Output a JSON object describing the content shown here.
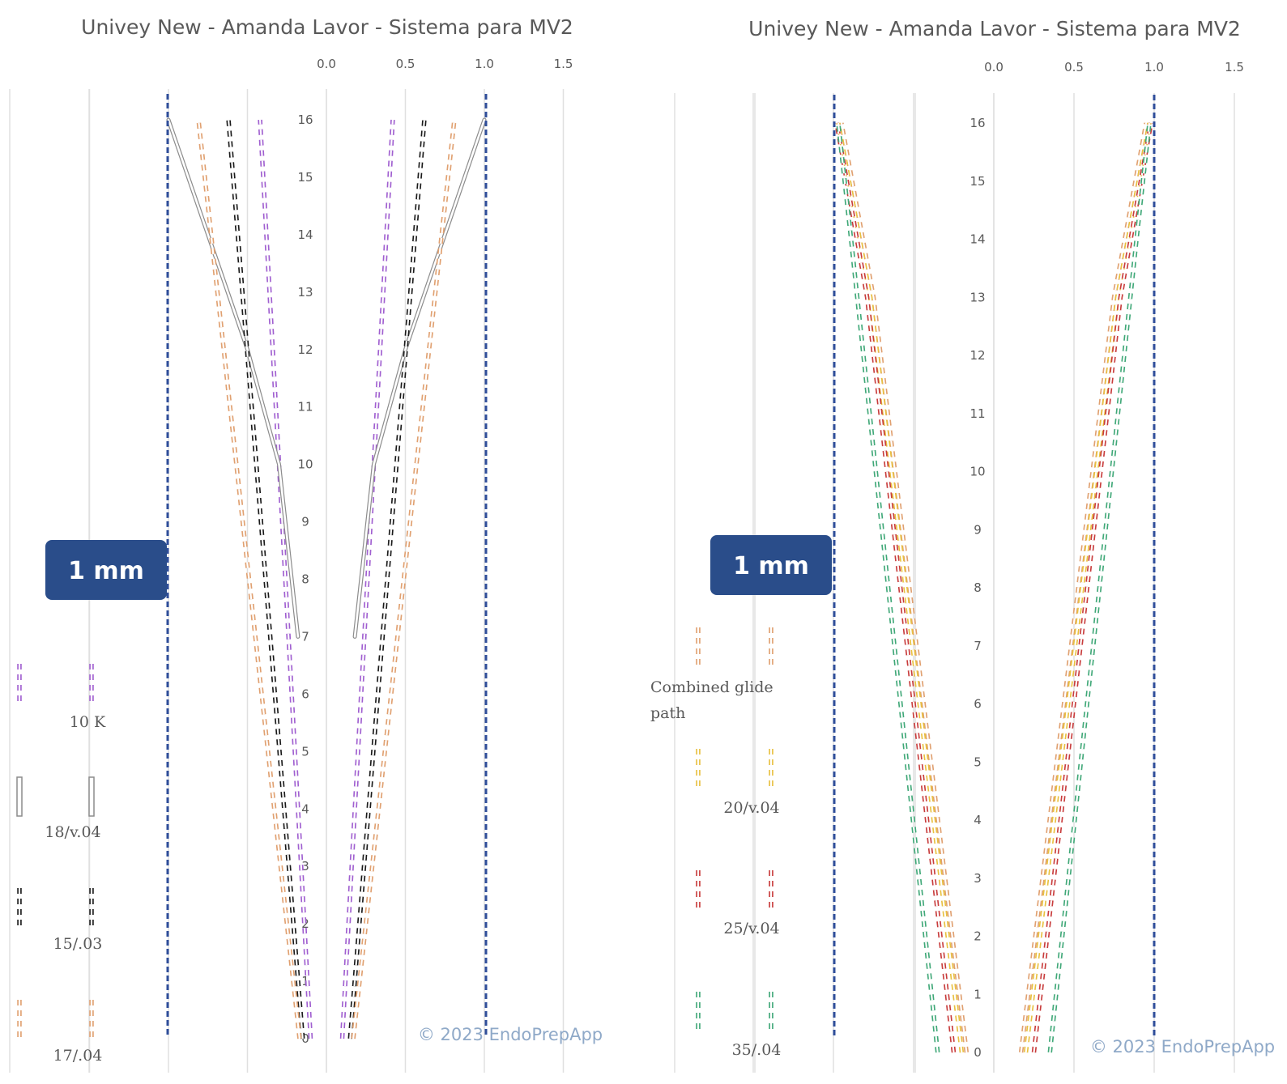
{
  "colors": {
    "purple": "#a05fd0",
    "gray": "#b8b8b8",
    "black": "#1a1a1a",
    "orange": "#e0a070",
    "yellow": "#e8c040",
    "red": "#c83c3c",
    "green": "#40a878",
    "guide": "#2f4e9a",
    "badge": "#2a4d8a",
    "grid": "#e0e0e0"
  },
  "chart_data": [
    {
      "type": "line",
      "title": "Univey New - Amanda Lavor - Sistema para MV2",
      "x_ticks": [
        "0.0",
        "0.5",
        "1.0",
        "1.5"
      ],
      "y_ticks": [
        "16",
        "15",
        "14",
        "13",
        "12",
        "11",
        "10",
        "9",
        "8",
        "7",
        "6",
        "5",
        "4",
        "3",
        "2",
        "1",
        "0"
      ],
      "xlim": [
        0,
        1.5
      ],
      "ylim": [
        0,
        16
      ],
      "grid": true,
      "badge": "1 mm",
      "copyright": "© 2023 EndoPrepApp",
      "series": [
        {
          "name": "10 K",
          "color_key": "purple",
          "style": "dashed",
          "points": [
            [
              0.1,
              0
            ],
            [
              0.42,
              16
            ]
          ]
        },
        {
          "name": "18/v.04",
          "color_key": "gray",
          "style": "solid",
          "points": [
            [
              0.18,
              7
            ],
            [
              0.3,
              10
            ],
            [
              0.5,
              12
            ],
            [
              1.0,
              16
            ]
          ]
        },
        {
          "name": "15/.03",
          "color_key": "black",
          "style": "dashed",
          "points": [
            [
              0.15,
              0
            ],
            [
              0.62,
              16
            ]
          ]
        },
        {
          "name": "17/.04",
          "color_key": "orange",
          "style": "dashed",
          "points": [
            [
              0.17,
              0
            ],
            [
              0.81,
              16
            ]
          ]
        }
      ]
    },
    {
      "type": "line",
      "title": "Univey New - Amanda Lavor - Sistema para MV2",
      "x_ticks": [
        "0.0",
        "0.5",
        "1.0",
        "1.5"
      ],
      "y_ticks": [
        "16",
        "15",
        "14",
        "13",
        "12",
        "11",
        "10",
        "9",
        "8",
        "7",
        "6",
        "5",
        "4",
        "3",
        "2",
        "1",
        "0"
      ],
      "xlim": [
        0,
        1.5
      ],
      "ylim": [
        0,
        16
      ],
      "grid": true,
      "badge": "1 mm",
      "copyright": "© 2023 EndoPrepApp",
      "series": [
        {
          "name": "Combined glide path",
          "color_key": "orange",
          "style": "dashed",
          "points": [
            [
              0.17,
              0
            ],
            [
              0.75,
              13
            ],
            [
              0.95,
              16
            ]
          ]
        },
        {
          "name": "20/v.04",
          "color_key": "yellow",
          "style": "dashed",
          "points": [
            [
              0.2,
              0
            ],
            [
              0.77,
              13
            ],
            [
              0.97,
              16
            ]
          ]
        },
        {
          "name": "25/v.04",
          "color_key": "red",
          "style": "dashed",
          "points": [
            [
              0.25,
              0
            ],
            [
              0.79,
              13
            ],
            [
              0.98,
              16
            ]
          ]
        },
        {
          "name": "35/.04",
          "color_key": "green",
          "style": "dashed",
          "points": [
            [
              0.35,
              0
            ],
            [
              0.89,
              14
            ],
            [
              0.97,
              16
            ]
          ]
        }
      ]
    }
  ]
}
